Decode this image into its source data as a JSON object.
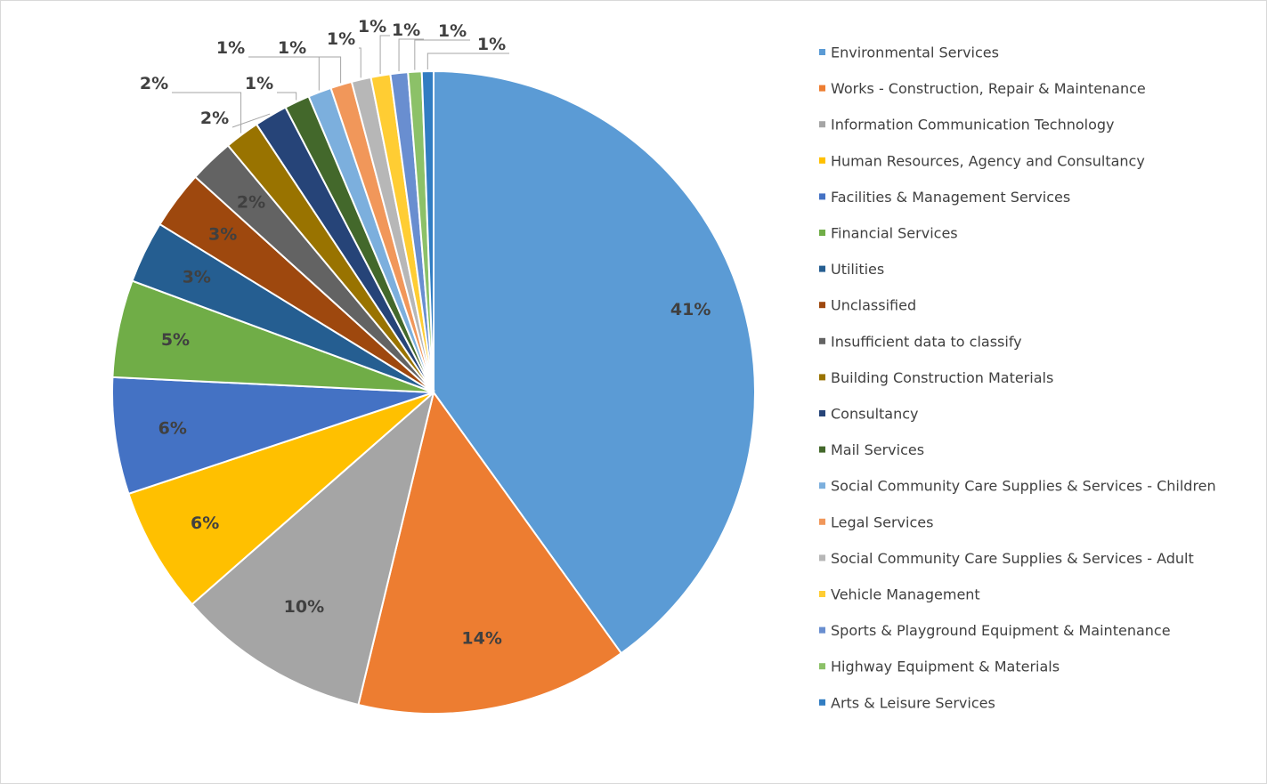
{
  "chart_data": {
    "type": "pie",
    "title": "",
    "legend_position": "right",
    "start_angle_deg": 0,
    "direction": "clockwise",
    "slices": [
      {
        "name": "Environmental Services",
        "value": 41,
        "label": "41%",
        "color": "#5b9bd5"
      },
      {
        "name": "Works - Construction, Repair & Maintenance",
        "value": 14,
        "label": "14%",
        "color": "#ed7d31"
      },
      {
        "name": "Information Communication Technology",
        "value": 10,
        "label": "10%",
        "color": "#a5a5a5"
      },
      {
        "name": "Human Resources, Agency and Consultancy",
        "value": 6.5,
        "label": "6%",
        "color": "#ffc000"
      },
      {
        "name": "Facilities & Management Services",
        "value": 6,
        "label": "6%",
        "color": "#4472c4"
      },
      {
        "name": "Financial Services",
        "value": 5,
        "label": "5%",
        "color": "#70ad47"
      },
      {
        "name": "Utilities",
        "value": 3.2,
        "label": "3%",
        "color": "#255e91"
      },
      {
        "name": "Unclassified",
        "value": 3,
        "label": "3%",
        "color": "#9e480e"
      },
      {
        "name": "Insufficient data to classify",
        "value": 2.3,
        "label": "2%",
        "color": "#636363"
      },
      {
        "name": "Building Construction Materials",
        "value": 1.8,
        "label": "2%",
        "color": "#997300"
      },
      {
        "name": "Consultancy",
        "value": 1.7,
        "label": "2%",
        "color": "#264478"
      },
      {
        "name": "Mail Services",
        "value": 1.3,
        "label": "1%",
        "color": "#43682b"
      },
      {
        "name": "Social Community Care Supplies & Services - Children",
        "value": 1.2,
        "label": "1%",
        "color": "#7cafdd"
      },
      {
        "name": "Legal Services",
        "value": 1.1,
        "label": "1%",
        "color": "#f1975a"
      },
      {
        "name": "Social Community Care Supplies & Services - Adult",
        "value": 1.0,
        "label": "1%",
        "color": "#b7b7b7"
      },
      {
        "name": "Vehicle Management",
        "value": 1.0,
        "label": "1%",
        "color": "#ffcd33"
      },
      {
        "name": "Sports & Playground Equipment & Maintenance",
        "value": 0.9,
        "label": "1%",
        "color": "#698ed0"
      },
      {
        "name": "Highway Equipment & Materials",
        "value": 0.7,
        "label": "1%",
        "color": "#8cc168"
      },
      {
        "name": "Arts & Leisure Services",
        "value": 0.6,
        "label": "1%",
        "color": "#327dc2"
      }
    ]
  }
}
